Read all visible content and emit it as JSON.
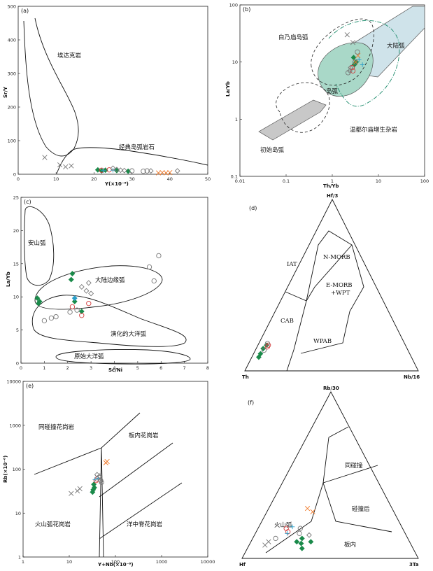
{
  "colors": {
    "green": "#1a8a4a",
    "red": "#d23a3a",
    "orange": "#f07a2a",
    "cyan": "#2a9ec8",
    "gray": "#777777",
    "light_blue": "#cfe3ea",
    "teal_fill": "#a9d8c8",
    "gray_fill": "#c8c8c8"
  },
  "chart_data": [
    {
      "id": "a",
      "type": "scatter",
      "panel_label": "(a)",
      "xlabel": "Y(×10⁻⁶)",
      "ylabel": "Sr/Y",
      "xlim": [
        0,
        50
      ],
      "ylim": [
        0,
        500
      ],
      "xticks": [
        "0",
        "10",
        "20",
        "30",
        "40",
        "50"
      ],
      "yticks": [
        "0",
        "100",
        "200",
        "300",
        "400",
        "500"
      ],
      "field_labels": [
        "埃达克岩",
        "经典岛弧岩石"
      ],
      "points": [
        {
          "x": 7,
          "y": 50,
          "m": "xgray"
        },
        {
          "x": 11,
          "y": 28,
          "m": "xgray"
        },
        {
          "x": 14,
          "y": 25,
          "m": "xgray"
        },
        {
          "x": 12.5,
          "y": 22,
          "m": "xgray"
        },
        {
          "x": 21,
          "y": 13,
          "m": "dgreen"
        },
        {
          "x": 22,
          "y": 10,
          "m": "dgreen"
        },
        {
          "x": 23,
          "y": 12,
          "m": "dgreen"
        },
        {
          "x": 29,
          "y": 9,
          "m": "dgreen"
        },
        {
          "x": 26,
          "y": 11,
          "m": "dgreen"
        },
        {
          "x": 22,
          "y": 12,
          "m": "ored"
        },
        {
          "x": 24,
          "y": 13,
          "m": "ored"
        },
        {
          "x": 22.5,
          "y": 11,
          "m": "pcyan"
        },
        {
          "x": 25,
          "y": 12,
          "m": "pcyan"
        },
        {
          "x": 26,
          "y": 14,
          "m": "dgray"
        },
        {
          "x": 27,
          "y": 12,
          "m": "dgray"
        },
        {
          "x": 28,
          "y": 11,
          "m": "dgray"
        },
        {
          "x": 25,
          "y": 18,
          "m": "dgray"
        },
        {
          "x": 35,
          "y": 10,
          "m": "dgray"
        },
        {
          "x": 42,
          "y": 10,
          "m": "dgray"
        },
        {
          "x": 30,
          "y": 10,
          "m": "ogray"
        },
        {
          "x": 33,
          "y": 9,
          "m": "ogray"
        },
        {
          "x": 34,
          "y": 10,
          "m": "ogray"
        },
        {
          "x": 37,
          "y": 4,
          "m": "xorange"
        },
        {
          "x": 38,
          "y": 5,
          "m": "xorange"
        },
        {
          "x": 39,
          "y": 4,
          "m": "xorange"
        },
        {
          "x": 40,
          "y": 5,
          "m": "xorange"
        }
      ]
    },
    {
      "id": "b",
      "type": "scatter",
      "panel_label": "(b)",
      "xlabel": "Th/Yb",
      "ylabel": "La/Yb",
      "xscale": "log",
      "yscale": "log",
      "xlim": [
        0.01,
        100
      ],
      "ylim": [
        0.1,
        100
      ],
      "xticks": [
        "0.01",
        "0.1",
        "1",
        "10",
        "100"
      ],
      "yticks": [
        "0.1",
        "1",
        "10",
        "100"
      ],
      "field_labels": [
        "大陆弧",
        "白乃庙岛弧",
        "岛弧",
        "温都尔庙增生杂岩",
        "初始岛弧"
      ],
      "points": [
        {
          "x": 2.1,
          "y": 30,
          "m": "xgray"
        },
        {
          "x": 2.8,
          "y": 22,
          "m": "xgray"
        },
        {
          "x": 2.9,
          "y": 12,
          "m": "dgreen"
        },
        {
          "x": 3.0,
          "y": 9,
          "m": "dgreen"
        },
        {
          "x": 3.3,
          "y": 10,
          "m": "dgreen"
        },
        {
          "x": 2.7,
          "y": 8,
          "m": "ored"
        },
        {
          "x": 2.8,
          "y": 7,
          "m": "ored"
        },
        {
          "x": 3.2,
          "y": 10,
          "m": "xorange"
        },
        {
          "x": 3.6,
          "y": 13,
          "m": "xorange"
        },
        {
          "x": 4.5,
          "y": 9,
          "m": "pcyan"
        },
        {
          "x": 3.8,
          "y": 11,
          "m": "pcyan"
        },
        {
          "x": 2.4,
          "y": 7,
          "m": "dgray"
        },
        {
          "x": 2.5,
          "y": 8,
          "m": "dgray"
        },
        {
          "x": 3.1,
          "y": 10,
          "m": "ogray"
        },
        {
          "x": 3.5,
          "y": 15,
          "m": "ogray"
        },
        {
          "x": 2.2,
          "y": 6.5,
          "m": "ogray"
        }
      ]
    },
    {
      "id": "c",
      "type": "scatter",
      "panel_label": "(c)",
      "xlabel": "Sc/Ni",
      "ylabel": "La/Yb",
      "xlim": [
        0,
        8
      ],
      "ylim": [
        0,
        25
      ],
      "xticks": [
        "0",
        "1",
        "2",
        "3",
        "4",
        "5",
        "6",
        "7",
        "8"
      ],
      "yticks": [
        "0",
        "5",
        "10",
        "15",
        "20",
        "25"
      ],
      "field_labels": [
        "安山弧",
        "大陆边缘弧",
        "演化的大洋弧",
        "原始大洋弧"
      ],
      "points": [
        {
          "x": 0.7,
          "y": 9.8,
          "m": "dgreen"
        },
        {
          "x": 0.8,
          "y": 9.3,
          "m": "dgreen"
        },
        {
          "x": 0.75,
          "y": 9.0,
          "m": "dgreen"
        },
        {
          "x": 2.2,
          "y": 13.5,
          "m": "dgreen"
        },
        {
          "x": 2.15,
          "y": 12.6,
          "m": "dgreen"
        },
        {
          "x": 2.3,
          "y": 9.3,
          "m": "dgreen"
        },
        {
          "x": 2.6,
          "y": 7.8,
          "m": "dgreen"
        },
        {
          "x": 2.3,
          "y": 9.8,
          "m": "dcyan"
        },
        {
          "x": 2.2,
          "y": 8.5,
          "m": "ored"
        },
        {
          "x": 2.6,
          "y": 7.2,
          "m": "ored"
        },
        {
          "x": 2.9,
          "y": 9.0,
          "m": "ored"
        },
        {
          "x": 2.6,
          "y": 11.5,
          "m": "dgray"
        },
        {
          "x": 2.9,
          "y": 12.1,
          "m": "dgray"
        },
        {
          "x": 2.8,
          "y": 10.9,
          "m": "dgray"
        },
        {
          "x": 3.0,
          "y": 10.5,
          "m": "dgray"
        },
        {
          "x": 1.0,
          "y": 6.4,
          "m": "ogray"
        },
        {
          "x": 1.3,
          "y": 6.8,
          "m": "ogray"
        },
        {
          "x": 1.5,
          "y": 7.0,
          "m": "ogray"
        },
        {
          "x": 2.1,
          "y": 7.7,
          "m": "ogray"
        },
        {
          "x": 2.4,
          "y": 8.0,
          "m": "ogray"
        },
        {
          "x": 5.5,
          "y": 14.5,
          "m": "ogray"
        },
        {
          "x": 5.7,
          "y": 12.4,
          "m": "ogray"
        },
        {
          "x": 5.9,
          "y": 16.2,
          "m": "ogray"
        }
      ]
    },
    {
      "id": "d",
      "type": "ternary",
      "panel_label": "(d)",
      "vertex_labels": [
        "Hf/3",
        "Th",
        "Nb/16"
      ],
      "field_labels": [
        "IAT",
        "N-MORB",
        "E-MORB",
        "+WPT",
        "CAB",
        "WPAB"
      ],
      "points": [
        {
          "a": 0.08,
          "b": 0.88,
          "m": "dgreen"
        },
        {
          "a": 0.1,
          "b": 0.86,
          "m": "dgreen"
        },
        {
          "a": 0.13,
          "b": 0.83,
          "m": "dgreen"
        },
        {
          "a": 0.15,
          "b": 0.8,
          "m": "dgreen"
        },
        {
          "a": 0.14,
          "b": 0.8,
          "m": "ored"
        },
        {
          "a": 0.15,
          "b": 0.79,
          "m": "ored"
        },
        {
          "a": 0.12,
          "b": 0.83,
          "m": "ogray"
        },
        {
          "a": 0.16,
          "b": 0.79,
          "m": "ogray"
        }
      ]
    },
    {
      "id": "e",
      "type": "scatter",
      "panel_label": "(e)",
      "xlabel": "Y+Nb(×10⁻⁶)",
      "ylabel": "Rb(×10⁻⁶)",
      "xscale": "log",
      "yscale": "log",
      "xlim": [
        1,
        10000
      ],
      "ylim": [
        1,
        10000
      ],
      "xticks": [
        "1",
        "10",
        "100",
        "1000",
        "10000"
      ],
      "yticks": [
        "1",
        "10",
        "100",
        "1000",
        "10000"
      ],
      "field_labels": [
        "同碰撞花岗岩",
        "板内花岗岩",
        "火山弧花岗岩",
        "洋中脊花岗岩"
      ],
      "points": [
        {
          "x": 11,
          "y": 28,
          "m": "xgray"
        },
        {
          "x": 15,
          "y": 32,
          "m": "xgray"
        },
        {
          "x": 17,
          "y": 36,
          "m": "xgray"
        },
        {
          "x": 32,
          "y": 30,
          "m": "dgreen"
        },
        {
          "x": 33,
          "y": 34,
          "m": "dgreen"
        },
        {
          "x": 35,
          "y": 38,
          "m": "dgreen"
        },
        {
          "x": 34,
          "y": 45,
          "m": "dgreen"
        },
        {
          "x": 38,
          "y": 55,
          "m": "ored"
        },
        {
          "x": 40,
          "y": 60,
          "m": "ored"
        },
        {
          "x": 36,
          "y": 58,
          "m": "pcyan"
        },
        {
          "x": 42,
          "y": 62,
          "m": "pcyan"
        },
        {
          "x": 62,
          "y": 140,
          "m": "xorange"
        },
        {
          "x": 66,
          "y": 150,
          "m": "xorange"
        },
        {
          "x": 44,
          "y": 65,
          "m": "ogray"
        },
        {
          "x": 48,
          "y": 55,
          "m": "ogray"
        },
        {
          "x": 50,
          "y": 50,
          "m": "ogray"
        },
        {
          "x": 46,
          "y": 70,
          "m": "dgray"
        },
        {
          "x": 40,
          "y": 75,
          "m": "dgray"
        }
      ]
    },
    {
      "id": "f",
      "type": "ternary",
      "panel_label": "(f)",
      "vertex_labels": [
        "Rb/30",
        "Hf",
        "3Ta"
      ],
      "field_labels": [
        "同碰撞",
        "碰撞后",
        "火山弧",
        "板内"
      ],
      "points": [
        {
          "a": 0.08,
          "b": 0.83,
          "m": "xgray"
        },
        {
          "a": 0.1,
          "b": 0.8,
          "m": "xgray"
        },
        {
          "a": 0.12,
          "b": 0.75,
          "m": "ogray"
        },
        {
          "a": 0.16,
          "b": 0.66,
          "m": "ored"
        },
        {
          "a": 0.18,
          "b": 0.66,
          "m": "ored"
        },
        {
          "a": 0.15,
          "b": 0.67,
          "m": "pcyan"
        },
        {
          "a": 0.19,
          "b": 0.62,
          "m": "pcyan"
        },
        {
          "a": 0.1,
          "b": 0.64,
          "m": "dgreen"
        },
        {
          "a": 0.09,
          "b": 0.62,
          "m": "dgreen"
        },
        {
          "a": 0.12,
          "b": 0.6,
          "m": "dgreen"
        },
        {
          "a": 0.06,
          "b": 0.63,
          "m": "dgreen"
        },
        {
          "a": 0.1,
          "b": 0.56,
          "m": "dgreen"
        },
        {
          "a": 0.15,
          "b": 0.6,
          "m": "ogray"
        },
        {
          "a": 0.18,
          "b": 0.58,
          "m": "ogray"
        },
        {
          "a": 0.14,
          "b": 0.55,
          "m": "dgray"
        },
        {
          "a": 0.28,
          "b": 0.46,
          "m": "xorange"
        },
        {
          "a": 0.3,
          "b": 0.48,
          "m": "xorange"
        }
      ]
    }
  ]
}
